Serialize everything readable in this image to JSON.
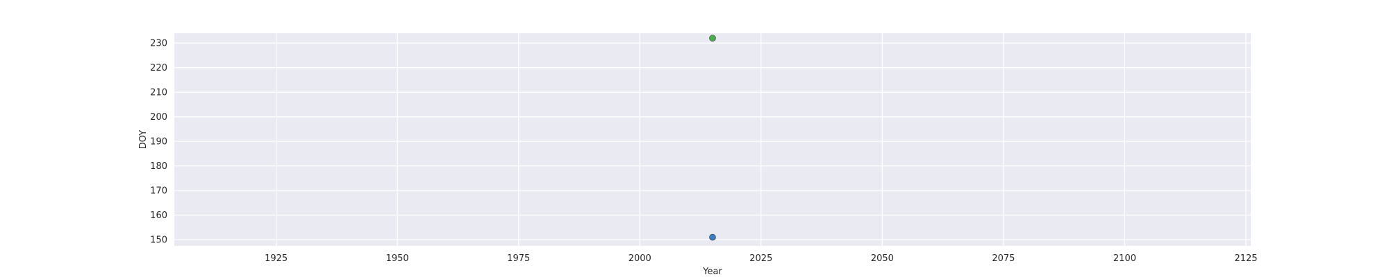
{
  "chart_data": {
    "type": "scatter",
    "xlabel": "Year",
    "ylabel": "DOY",
    "xlim": [
      1904,
      2126
    ],
    "ylim": [
      147.5,
      234
    ],
    "x_ticks": [
      1925,
      1950,
      1975,
      2000,
      2025,
      2050,
      2075,
      2100,
      2125
    ],
    "y_ticks": [
      150,
      160,
      170,
      180,
      190,
      200,
      210,
      220,
      230
    ],
    "grid": true,
    "background_color": "#eaeaf2",
    "grid_color": "#ffffff",
    "points": [
      {
        "x": 2015,
        "y": 151,
        "color": "#3b7dc4"
      },
      {
        "x": 2015,
        "y": 232,
        "color": "#4aae4a"
      }
    ]
  }
}
